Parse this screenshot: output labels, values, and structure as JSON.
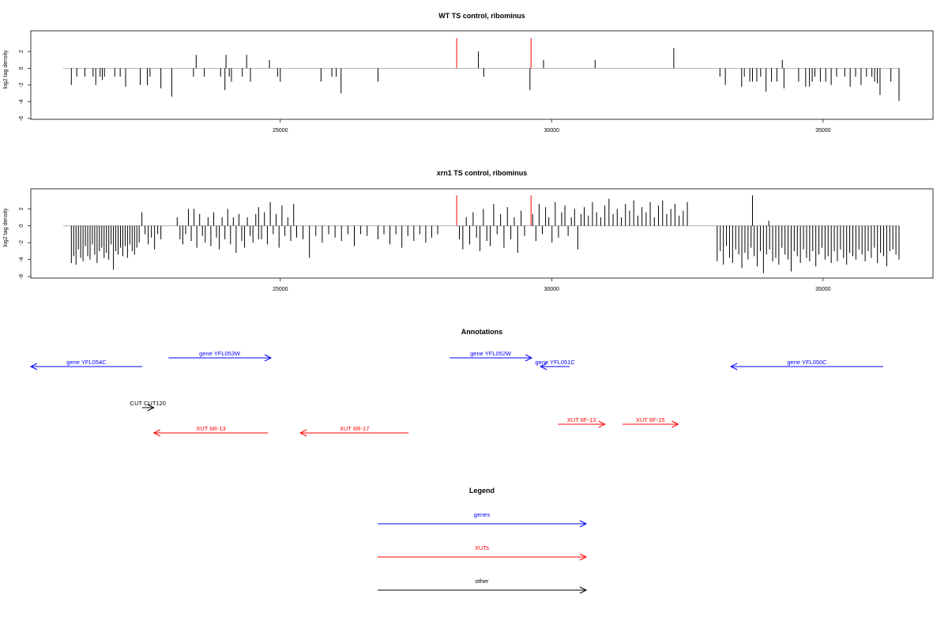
{
  "chart_data": [
    {
      "type": "bar",
      "title": "WT TS control, ribominus",
      "ylabel": "log2 tag density",
      "xlabel": "",
      "xlim": [
        21000,
        36400
      ],
      "ylim": [
        -6,
        4
      ],
      "xticks": [
        25000,
        30000,
        35000
      ],
      "yticks": [
        -6,
        -4,
        -2,
        0,
        2
      ],
      "baseline_color": "#a0a0a0",
      "bar_color": "#000000",
      "highlight_color": "#ff0000",
      "highlights": [
        {
          "x": 28250,
          "value": 3.6
        },
        {
          "x": 29620,
          "value": 3.6
        }
      ],
      "bars": [
        {
          "x": 21150,
          "value": -2.0
        },
        {
          "x": 21250,
          "value": -1.0
        },
        {
          "x": 21400,
          "value": -1.0
        },
        {
          "x": 21550,
          "value": -1.0
        },
        {
          "x": 21600,
          "value": -2.0
        },
        {
          "x": 21680,
          "value": -1.0
        },
        {
          "x": 21720,
          "value": -1.4
        },
        {
          "x": 21760,
          "value": -1.0
        },
        {
          "x": 21950,
          "value": -1.0
        },
        {
          "x": 22050,
          "value": -1.0
        },
        {
          "x": 22150,
          "value": -2.2
        },
        {
          "x": 22420,
          "value": -2.0
        },
        {
          "x": 22550,
          "value": -2.0
        },
        {
          "x": 22600,
          "value": -1.0
        },
        {
          "x": 22800,
          "value": -2.4
        },
        {
          "x": 23000,
          "value": -3.4
        },
        {
          "x": 23400,
          "value": -1.0
        },
        {
          "x": 23450,
          "value": 1.6
        },
        {
          "x": 23600,
          "value": -1.0
        },
        {
          "x": 23900,
          "value": -1.0
        },
        {
          "x": 23980,
          "value": -2.6
        },
        {
          "x": 24000,
          "value": 1.6
        },
        {
          "x": 24060,
          "value": -1.0
        },
        {
          "x": 24100,
          "value": -1.6
        },
        {
          "x": 24300,
          "value": -1.0
        },
        {
          "x": 24380,
          "value": 1.6
        },
        {
          "x": 24450,
          "value": -1.6
        },
        {
          "x": 24800,
          "value": 1.0
        },
        {
          "x": 24950,
          "value": -1.0
        },
        {
          "x": 25000,
          "value": -1.6
        },
        {
          "x": 25750,
          "value": -1.6
        },
        {
          "x": 25950,
          "value": -1.0
        },
        {
          "x": 26030,
          "value": -1.0
        },
        {
          "x": 26120,
          "value": -3.0
        },
        {
          "x": 26800,
          "value": -1.6
        },
        {
          "x": 28650,
          "value": 2.0
        },
        {
          "x": 28750,
          "value": -1.0
        },
        {
          "x": 29600,
          "value": -2.6
        },
        {
          "x": 29850,
          "value": 1.0
        },
        {
          "x": 30800,
          "value": 1.0
        },
        {
          "x": 32250,
          "value": 2.4
        },
        {
          "x": 33100,
          "value": -1.0
        },
        {
          "x": 33200,
          "value": -2.0
        },
        {
          "x": 33500,
          "value": -2.2
        },
        {
          "x": 33550,
          "value": -1.0
        },
        {
          "x": 33650,
          "value": -1.6
        },
        {
          "x": 33700,
          "value": -1.6
        },
        {
          "x": 33780,
          "value": -1.6
        },
        {
          "x": 33850,
          "value": -1.0
        },
        {
          "x": 33950,
          "value": -2.8
        },
        {
          "x": 34050,
          "value": -1.6
        },
        {
          "x": 34150,
          "value": -1.6
        },
        {
          "x": 34250,
          "value": 1.0
        },
        {
          "x": 34280,
          "value": -2.4
        },
        {
          "x": 34550,
          "value": -1.6
        },
        {
          "x": 34680,
          "value": -2.2
        },
        {
          "x": 34750,
          "value": -2.2
        },
        {
          "x": 34800,
          "value": -1.6
        },
        {
          "x": 34850,
          "value": -1.0
        },
        {
          "x": 34950,
          "value": -1.6
        },
        {
          "x": 35050,
          "value": -1.6
        },
        {
          "x": 35150,
          "value": -2.0
        },
        {
          "x": 35250,
          "value": -1.0
        },
        {
          "x": 35400,
          "value": -1.0
        },
        {
          "x": 35500,
          "value": -2.2
        },
        {
          "x": 35600,
          "value": -1.0
        },
        {
          "x": 35700,
          "value": -2.0
        },
        {
          "x": 35800,
          "value": -1.0
        },
        {
          "x": 35900,
          "value": -1.0
        },
        {
          "x": 35950,
          "value": -1.6
        },
        {
          "x": 36000,
          "value": -1.8
        },
        {
          "x": 36050,
          "value": -3.2
        },
        {
          "x": 36250,
          "value": -1.6
        },
        {
          "x": 36400,
          "value": -3.9
        }
      ]
    },
    {
      "type": "bar",
      "title": "xrn1 TS control, ribominus",
      "ylabel": "log2 tag density",
      "xlabel": "",
      "xlim": [
        21000,
        36400
      ],
      "ylim": [
        -6,
        4
      ],
      "xticks": [
        25000,
        30000,
        35000
      ],
      "yticks": [
        -6,
        -4,
        -2,
        0,
        2
      ],
      "baseline_color": "#a0a0a0",
      "bar_color": "#000000",
      "highlight_color": "#ff0000",
      "highlights": [
        {
          "x": 28250,
          "value": 3.6
        },
        {
          "x": 29620,
          "value": 3.6
        }
      ],
      "segments": [
        {
          "x0": 21150,
          "x1": 22400,
          "values": [
            -4.4,
            -3.6,
            -4.6,
            -2.8,
            -3.8,
            -4.2,
            -2.4,
            -3.6,
            -4.0,
            -2.2,
            -3.4,
            -4.4,
            -3.0,
            -2.6,
            -3.8,
            -3.2,
            -4.0,
            -2.2,
            -5.2,
            -3.0,
            -3.4,
            -2.6,
            -3.6,
            -2.4,
            -3.8,
            -2.2,
            -3.0,
            -3.4,
            -2.6,
            -2.0
          ]
        },
        {
          "x0": 22450,
          "x1": 22800,
          "values": [
            1.6,
            -1.0,
            -2.2,
            -1.4,
            -2.8,
            -1.0,
            -1.6
          ]
        },
        {
          "x0": 23100,
          "x1": 24600,
          "values": [
            1.0,
            -1.6,
            -2.2,
            -1.0,
            2.0,
            -1.8,
            2.0,
            -2.6,
            1.4,
            -1.2,
            -2.0,
            1.0,
            -2.4,
            1.6,
            -1.4,
            -2.8,
            1.0,
            -1.6,
            2.0,
            -2.2,
            1.0,
            -3.2,
            1.4,
            -1.8,
            -2.6,
            1.0,
            -1.2,
            -2.0,
            1.4,
            -1.6
          ]
        },
        {
          "x0": 24600,
          "x1": 25300,
          "values": [
            2.2,
            -1.6,
            1.6,
            -2.2,
            2.8,
            -1.0,
            1.4,
            -2.6,
            2.4,
            -1.2,
            1.0,
            -1.8,
            2.6,
            -1.4
          ]
        },
        {
          "x0": 25300,
          "x1": 26600,
          "values": [
            -1.0,
            -1.6,
            -3.8,
            -1.2,
            -2.0,
            -1.0,
            -1.4,
            -1.8,
            -1.0,
            -2.4,
            -1.0,
            -1.2
          ]
        },
        {
          "x0": 26800,
          "x1": 27900,
          "values": [
            -1.6,
            -1.0,
            -2.2,
            -1.0,
            -2.6,
            -1.2,
            -1.8,
            -1.0,
            -2.0,
            -1.4,
            -1.0
          ]
        },
        {
          "x0": 28300,
          "x1": 29500,
          "values": [
            -1.6,
            -2.8,
            1.0,
            -2.2,
            1.6,
            -1.4,
            -3.0,
            2.0,
            -1.8,
            -2.4,
            2.6,
            -1.0,
            1.4,
            -2.6,
            2.2,
            -1.6,
            1.0,
            -3.2,
            1.8,
            -1.2
          ]
        },
        {
          "x0": 29650,
          "x1": 30600,
          "values": [
            1.4,
            -1.8,
            2.6,
            -1.0,
            2.2,
            1.0,
            -2.0,
            2.8,
            -1.4,
            1.6,
            2.4,
            -1.2,
            1.0,
            2.0,
            -2.8,
            1.4,
            1.8
          ]
        },
        {
          "x0": 30600,
          "x1": 32500,
          "values": [
            2.2,
            1.2,
            2.8,
            1.6,
            1.0,
            2.4,
            3.2,
            1.4,
            2.0,
            1.0,
            2.6,
            1.8,
            3.0,
            1.2,
            2.2,
            1.6,
            2.8,
            1.0,
            2.4,
            3.0,
            1.4,
            2.0,
            2.6,
            1.2,
            1.8,
            2.8
          ]
        },
        {
          "x0": 33050,
          "x1": 36400,
          "values": [
            -4.2,
            -3.0,
            -4.6,
            -2.4,
            -3.8,
            -4.4,
            -2.8,
            -3.4,
            -5.0,
            -3.2,
            -4.0,
            -2.6,
            -3.6,
            -4.8,
            -3.0,
            -5.6,
            -3.4,
            -2.8,
            -4.2,
            -3.8,
            -4.6,
            -2.6,
            -3.4,
            -4.0,
            -5.4,
            -3.0,
            -3.6,
            -4.4,
            -2.8,
            -3.8,
            -4.2,
            -3.0,
            -4.8,
            -3.4,
            -2.6,
            -4.0,
            -3.6,
            -4.4,
            -3.0,
            -4.2,
            -2.8,
            -3.8,
            -4.6,
            -3.2,
            -3.6,
            -4.0,
            -2.8,
            -3.4,
            -4.2,
            -3.0,
            -3.8,
            -2.6,
            -4.4,
            -3.2,
            -3.6,
            -4.8,
            -3.0,
            -2.8,
            -3.4,
            -4.0
          ]
        }
      ],
      "extra_bars": [
        {
          "x": 33700,
          "value": 3.6
        },
        {
          "x": 34000,
          "value": 0.6
        }
      ]
    }
  ],
  "annotations": {
    "title": "Annotations",
    "items": [
      {
        "label": "gene YFL054C",
        "start": 21000,
        "end": 22900,
        "strand": "-",
        "row": 1,
        "color": "#0000ff"
      },
      {
        "label": "gene YFL053W",
        "start": 23350,
        "end": 25100,
        "strand": "+",
        "row": 0,
        "color": "#0000ff"
      },
      {
        "label": "gene YFL052W",
        "start": 28150,
        "end": 29550,
        "strand": "+",
        "row": 0,
        "color": "#0000ff"
      },
      {
        "label": "gene YFL051C",
        "start": 29700,
        "end": 30200,
        "strand": "-",
        "row": 1,
        "color": "#0000ff"
      },
      {
        "label": "gene YFL050C",
        "start": 32950,
        "end": 35550,
        "strand": "-",
        "row": 1,
        "color": "#0000ff"
      },
      {
        "label": "CUT CUT120",
        "start": 22900,
        "end": 23100,
        "strand": "+",
        "row": 2,
        "color": "#000000"
      },
      {
        "label": "XUT 6R-13",
        "start": 23100,
        "end": 25050,
        "strand": "-",
        "row": 4,
        "color": "#ff0000"
      },
      {
        "label": "XUT 6R-17",
        "start": 25600,
        "end": 27450,
        "strand": "-",
        "row": 4,
        "color": "#ff0000"
      },
      {
        "label": "XUT 6F-13",
        "start": 30000,
        "end": 30800,
        "strand": "+",
        "row": 3,
        "color": "#ff0000"
      },
      {
        "label": "XUT 6F-15",
        "start": 31100,
        "end": 32050,
        "strand": "+",
        "row": 3,
        "color": "#ff0000"
      }
    ]
  },
  "legend": {
    "title": "Legend",
    "items": [
      {
        "label": "genes",
        "color": "#0000ff"
      },
      {
        "label": "XUTs",
        "color": "#ff0000"
      },
      {
        "label": "other",
        "color": "#000000"
      }
    ]
  }
}
